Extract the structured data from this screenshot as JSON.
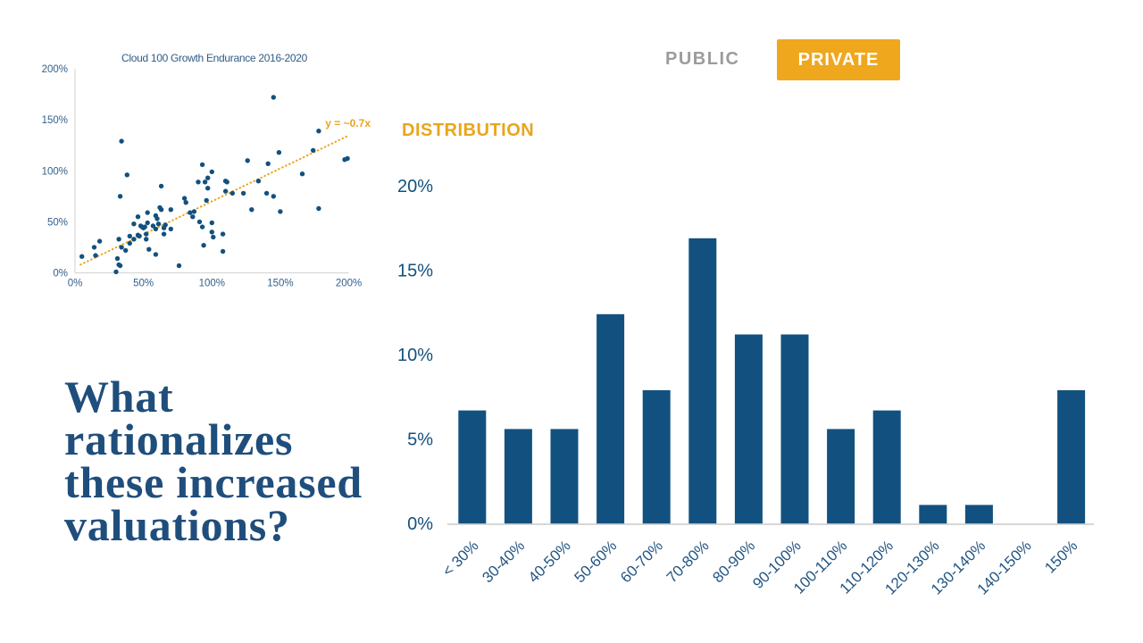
{
  "toggle": {
    "public_label": "PUBLIC",
    "private_label": "PRIVATE",
    "active": "PRIVATE",
    "active_bg": "#EFA71E",
    "inactive_color": "#9C9C9C"
  },
  "headline": {
    "text": "What rationalizes these increased valuations?",
    "lines": [
      "What",
      "rationalizes",
      "these increased",
      "valuations?"
    ],
    "color": "#1F4E7C"
  },
  "colors": {
    "navy": "#12517F",
    "orange": "#E9A51C",
    "gray_label": "#9C9C9C",
    "axis_gray": "#D8D8D8"
  },
  "chart_data": [
    {
      "type": "scatter",
      "title": "Cloud 100 Growth Endurance 2016-2020",
      "xlabel": "",
      "ylabel": "",
      "xlim": [
        0,
        200
      ],
      "ylim": [
        0,
        200
      ],
      "x_ticks": [
        "0%",
        "50%",
        "100%",
        "150%",
        "200%"
      ],
      "y_ticks": [
        "0%",
        "50%",
        "100%",
        "150%",
        "200%"
      ],
      "point_color": "#12517F",
      "trend": {
        "label": "y = ~0.7x",
        "color": "#E8A41C",
        "x1": 4,
        "y1": 8,
        "x2": 199,
        "y2": 134,
        "style": "dotted"
      },
      "points": [
        [
          5,
          16
        ],
        [
          14,
          25
        ],
        [
          15,
          17
        ],
        [
          18,
          31
        ],
        [
          30,
          1
        ],
        [
          31,
          14
        ],
        [
          32,
          8
        ],
        [
          33,
          7
        ],
        [
          32,
          33
        ],
        [
          34,
          25
        ],
        [
          34,
          129
        ],
        [
          33,
          75
        ],
        [
          37,
          22
        ],
        [
          38,
          96
        ],
        [
          40,
          29
        ],
        [
          40,
          36
        ],
        [
          43,
          33
        ],
        [
          43,
          48
        ],
        [
          46,
          55
        ],
        [
          46,
          37
        ],
        [
          47,
          36
        ],
        [
          48,
          46
        ],
        [
          49,
          45
        ],
        [
          50,
          44
        ],
        [
          51,
          45
        ],
        [
          52,
          38
        ],
        [
          52,
          33
        ],
        [
          53,
          59
        ],
        [
          53,
          49
        ],
        [
          54,
          23
        ],
        [
          57,
          46
        ],
        [
          59,
          56
        ],
        [
          60,
          53
        ],
        [
          59,
          43
        ],
        [
          59,
          18
        ],
        [
          61,
          48
        ],
        [
          62,
          64
        ],
        [
          63,
          62
        ],
        [
          63,
          85
        ],
        [
          65,
          44
        ],
        [
          66,
          47
        ],
        [
          65,
          38
        ],
        [
          70,
          62
        ],
        [
          70,
          43
        ],
        [
          76,
          7
        ],
        [
          80,
          73
        ],
        [
          81,
          69
        ],
        [
          84,
          59
        ],
        [
          86,
          55
        ],
        [
          87,
          60
        ],
        [
          91,
          50
        ],
        [
          93,
          45
        ],
        [
          90,
          89
        ],
        [
          93,
          106
        ],
        [
          95,
          89
        ],
        [
          96,
          71
        ],
        [
          97,
          83
        ],
        [
          97,
          93
        ],
        [
          100,
          99
        ],
        [
          100,
          49
        ],
        [
          100,
          40
        ],
        [
          101,
          35
        ],
        [
          94,
          27
        ],
        [
          108,
          38
        ],
        [
          108,
          21
        ],
        [
          110,
          90
        ],
        [
          110,
          80
        ],
        [
          111,
          89
        ],
        [
          115,
          78
        ],
        [
          123,
          78
        ],
        [
          126,
          110
        ],
        [
          129,
          62
        ],
        [
          134,
          90
        ],
        [
          140,
          78
        ],
        [
          141,
          107
        ],
        [
          145,
          172
        ],
        [
          145,
          75
        ],
        [
          149,
          118
        ],
        [
          150,
          60
        ],
        [
          166,
          97
        ],
        [
          174,
          120
        ],
        [
          178,
          139
        ],
        [
          178,
          63
        ],
        [
          197,
          111
        ],
        [
          199,
          112
        ]
      ]
    },
    {
      "type": "bar",
      "title": "DISTRIBUTION",
      "xlabel": "",
      "ylabel": "",
      "ylim": [
        0,
        20
      ],
      "y_ticks": [
        "0%",
        "5%",
        "10%",
        "15%",
        "20%"
      ],
      "bar_color": "#12517F",
      "categories": [
        "< 30%",
        "30-40%",
        "40-50%",
        "50-60%",
        "60-70%",
        "70-80%",
        "80-90%",
        "90-100%",
        "100-110%",
        "110-120%",
        "120-130%",
        "130-140%",
        "140-150%",
        "150%"
      ],
      "values": [
        6.7,
        5.6,
        5.6,
        12.4,
        7.9,
        16.9,
        11.2,
        11.2,
        5.6,
        6.7,
        1.1,
        1.1,
        0,
        7.9
      ]
    }
  ]
}
